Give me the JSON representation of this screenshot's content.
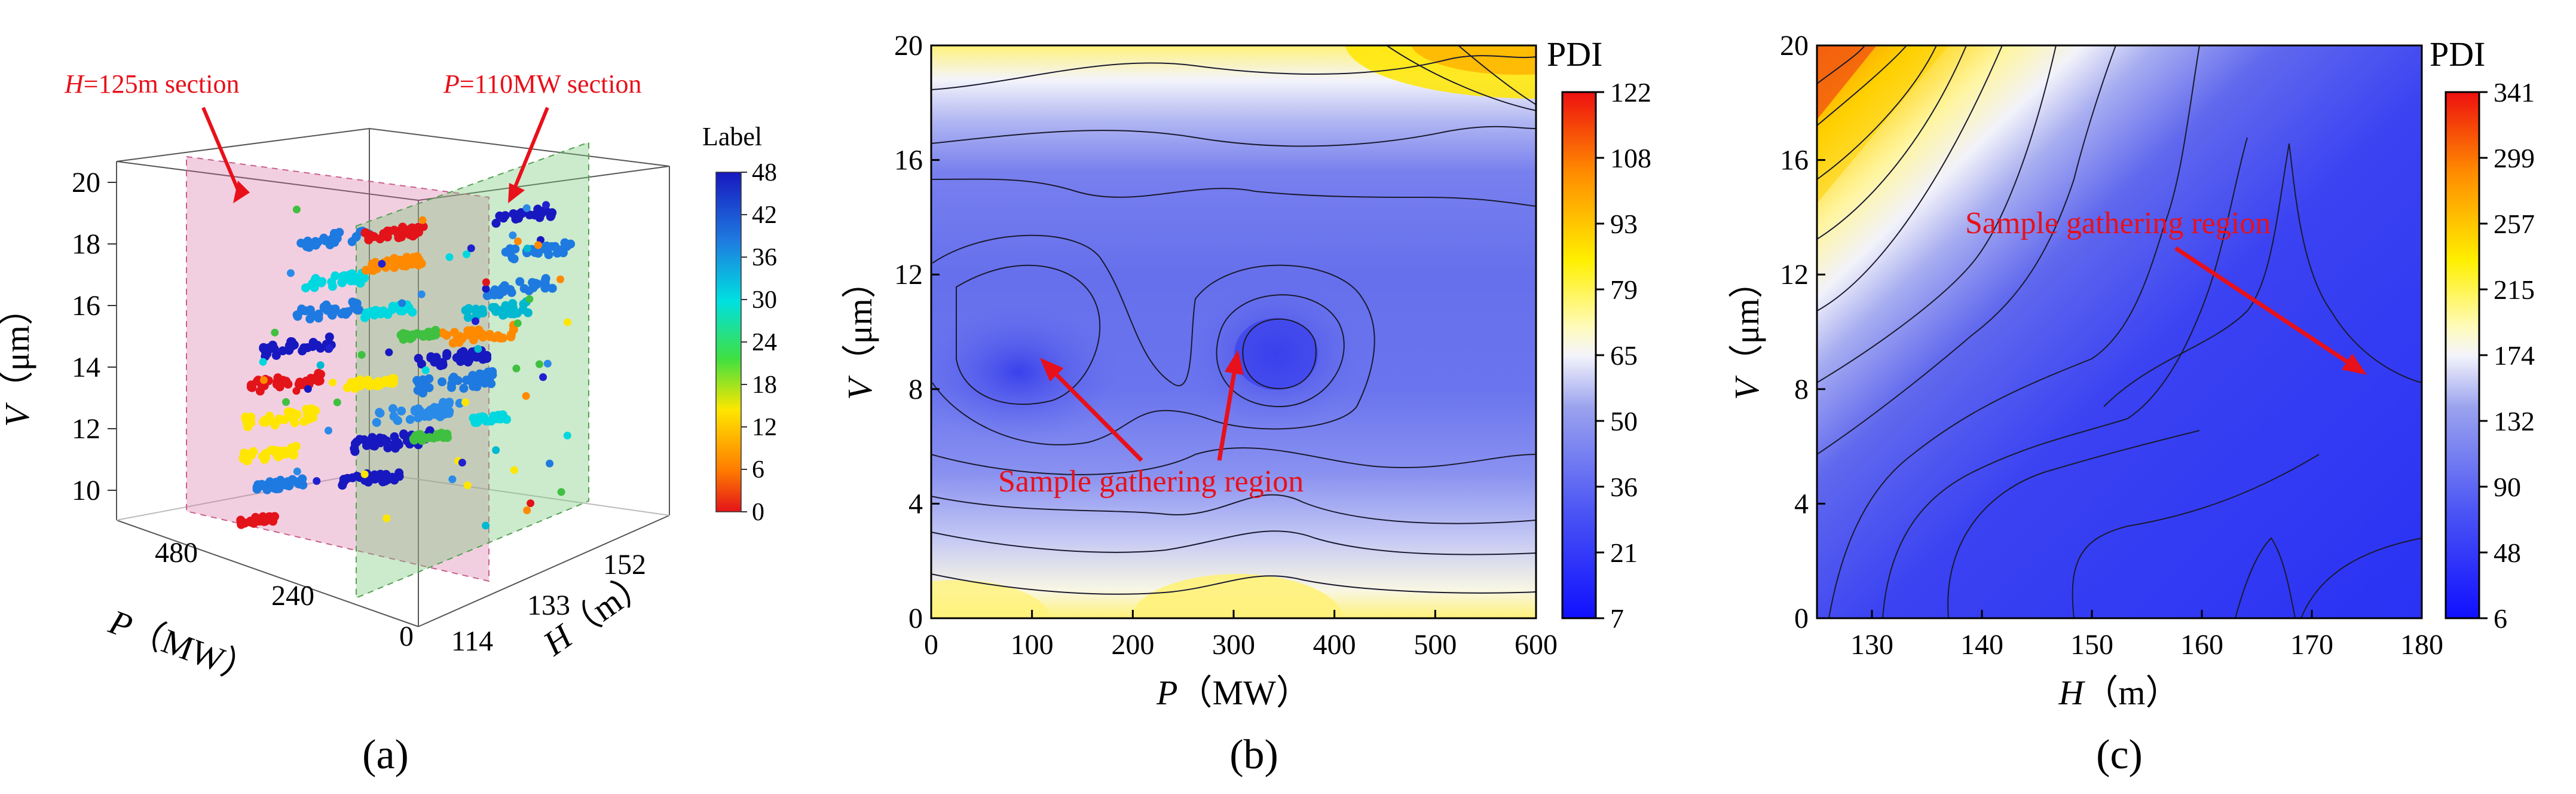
{
  "chart_data": [
    {
      "type": "scatter3d",
      "panel_label": "(a)",
      "xlabel": {
        "sym": "P",
        "unit": "（MW）"
      },
      "ylabel": {
        "sym": "H",
        "unit": "（m）"
      },
      "zlabel": {
        "sym": "V",
        "unit": "（μm）"
      },
      "x_ticks": [
        "0",
        "240",
        "480"
      ],
      "y_ticks": [
        "114",
        "133",
        "152"
      ],
      "z_ticks": [
        "10",
        "12",
        "14",
        "16",
        "18",
        "20"
      ],
      "colorbar": {
        "title": "Label",
        "min": 0,
        "max": 48,
        "ticks": [
          "0",
          "6",
          "12",
          "18",
          "24",
          "30",
          "36",
          "42",
          "48"
        ]
      },
      "annotations": [
        {
          "sym": "H",
          "rest": "=125m section"
        },
        {
          "sym": "P",
          "rest": "=110MW section"
        }
      ]
    },
    {
      "type": "contour",
      "panel_label": "(b)",
      "xlabel": {
        "sym": "P",
        "unit": "（MW）"
      },
      "ylabel": {
        "sym": "V",
        "unit": "（μm）"
      },
      "xlim": [
        0,
        600
      ],
      "ylim": [
        0,
        20
      ],
      "x_ticks": [
        "0",
        "100",
        "200",
        "300",
        "400",
        "500",
        "600"
      ],
      "y_ticks": [
        "0",
        "4",
        "8",
        "12",
        "16",
        "20"
      ],
      "colorbar": {
        "title": "PDI",
        "ticks": [
          "7",
          "21",
          "36",
          "50",
          "65",
          "79",
          "93",
          "108",
          "122"
        ]
      },
      "annotation": "Sample gathering region",
      "centers": [
        [
          90,
          9.3
        ],
        [
          340,
          10
        ]
      ]
    },
    {
      "type": "contour",
      "panel_label": "(c)",
      "xlabel": {
        "sym": "H",
        "unit": "（m）"
      },
      "ylabel": {
        "sym": "V",
        "unit": "（μm）"
      },
      "xlim": [
        125,
        180
      ],
      "ylim": [
        0,
        20
      ],
      "x_ticks": [
        "130",
        "140",
        "150",
        "160",
        "170",
        "180"
      ],
      "y_ticks": [
        "0",
        "4",
        "8",
        "12",
        "16",
        "20"
      ],
      "colorbar": {
        "title": "PDI",
        "ticks": [
          "6",
          "48",
          "90",
          "132",
          "174",
          "215",
          "257",
          "299",
          "341"
        ]
      },
      "annotation": "Sample gathering region",
      "center": [
        175,
        8.5
      ]
    }
  ]
}
